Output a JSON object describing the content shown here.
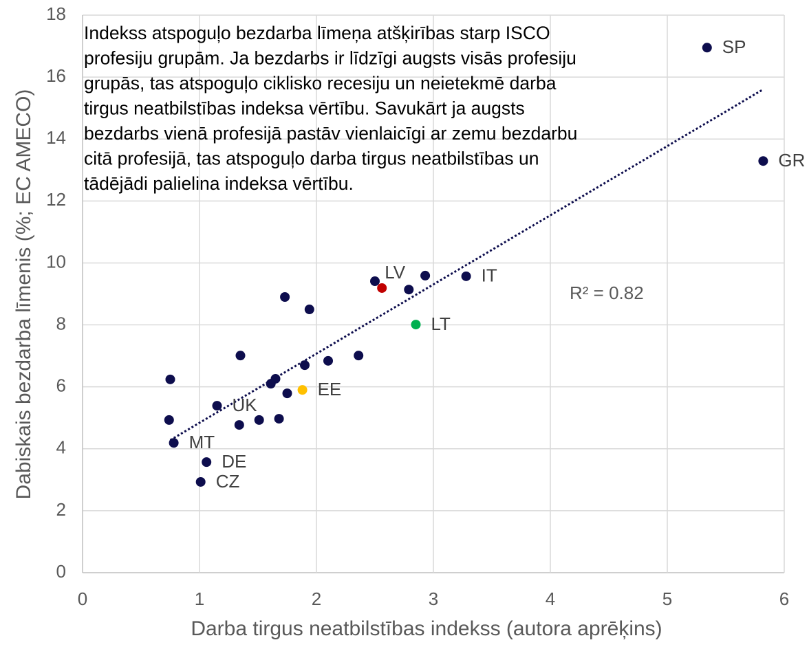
{
  "chart_data": {
    "type": "scatter",
    "xlabel": "Darba tirgus neatbilstības indekss (autora aprēķins)",
    "ylabel": "Dabiskais bezdarba līmenis (%; EC AMECO)",
    "xlim": [
      0,
      6
    ],
    "ylim": [
      0,
      18
    ],
    "xticks": [
      0,
      1,
      2,
      3,
      4,
      5,
      6
    ],
    "yticks": [
      0,
      2,
      4,
      6,
      8,
      10,
      12,
      14,
      16,
      18
    ],
    "grid": true,
    "annotation_lines": [
      "Indekss atspoguļo bezdarba līmeņa atšķirības starp ISCO",
      "profesiju grupām. Ja bezdarbs ir līdzīgi augsts visās profesiju",
      "grupās, tas atspoguļo ciklisko recesiju un neietekmē darba",
      "tirgus neatbilstības indeksa vērtību. Savukārt ja augsts",
      "bezdarbs vienā profesijā pastāv vienlaicīgi ar zemu bezdarbu",
      "citā profesijā, tas atspoguļo darba tirgus neatbilstības un",
      "tādējādi palielina indeksa vērtību."
    ],
    "r2_label": "R² = 0.82",
    "trendline": {
      "color": "#0d0d4d",
      "x": [
        0.75,
        5.81
      ],
      "y": [
        4.28,
        15.58
      ]
    },
    "series": [
      {
        "color": "#0d0d4d",
        "x": [
          5.34,
          5.82,
          3.28,
          1.15,
          0.78,
          1.06,
          1.01,
          2.5,
          2.93,
          2.79,
          1.73,
          1.94,
          1.35,
          2.36,
          2.1,
          1.9,
          0.75,
          1.65,
          1.61,
          1.75,
          1.51,
          1.68,
          1.34,
          0.74
        ],
        "y": [
          16.95,
          13.29,
          9.57,
          5.39,
          4.19,
          3.57,
          2.93,
          9.41,
          9.59,
          9.14,
          8.9,
          8.5,
          7.01,
          7.01,
          6.84,
          6.7,
          6.24,
          6.26,
          6.1,
          5.79,
          4.93,
          4.97,
          4.77,
          4.93
        ],
        "labels": [
          "SP",
          "GR",
          "IT",
          "UK",
          "MT",
          "DE",
          "CZ",
          null,
          null,
          null,
          null,
          null,
          null,
          null,
          null,
          null,
          null,
          null,
          null,
          null,
          null,
          null,
          null,
          null
        ]
      },
      {
        "color": "#c00000",
        "x": [
          2.56
        ],
        "y": [
          9.19
        ],
        "labels": [
          "LV"
        ]
      },
      {
        "color": "#00b050",
        "x": [
          2.85
        ],
        "y": [
          8.01
        ],
        "labels": [
          "LT"
        ]
      },
      {
        "color": "#ffc000",
        "x": [
          1.88
        ],
        "y": [
          5.9
        ],
        "labels": [
          "EE"
        ]
      }
    ]
  }
}
